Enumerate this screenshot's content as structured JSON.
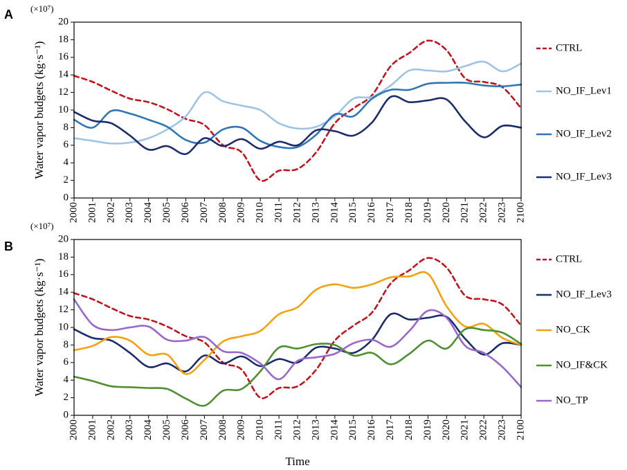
{
  "xlabel": "Time",
  "chart_data": [
    {
      "type": "line",
      "panel": "A",
      "scale_note": "(×10⁷)",
      "ylabel": "Water vapor budgets (kg·s⁻¹)",
      "ylim": [
        0,
        20
      ],
      "yticks": [
        "0",
        "2",
        "4",
        "6",
        "8",
        "10",
        "12",
        "14",
        "16",
        "18",
        "20"
      ],
      "categories": [
        "2000",
        "2001",
        "2002",
        "2003",
        "2004",
        "2005",
        "2006",
        "2007",
        "2008",
        "2009",
        "2010",
        "2011",
        "2012",
        "2013",
        "2014",
        "2015",
        "2016",
        "2017",
        "2018",
        "2019",
        "2020",
        "2021",
        "2022",
        "2023",
        "2100"
      ],
      "series": [
        {
          "name": "CTRL",
          "color": "#c0141c",
          "dash": true,
          "values": [
            13.9,
            13.2,
            12.2,
            11.3,
            10.9,
            10.1,
            9.0,
            8.3,
            6.0,
            5.2,
            2.0,
            3.1,
            3.3,
            5.2,
            8.5,
            10.2,
            11.7,
            15.0,
            16.5,
            17.9,
            16.8,
            13.6,
            13.2,
            12.6,
            10.2
          ]
        },
        {
          "name": "NO_IF_Lev1",
          "color": "#9dc3e6",
          "dash": false,
          "values": [
            6.8,
            6.5,
            6.2,
            6.3,
            6.8,
            7.8,
            9.3,
            12.0,
            11.0,
            10.5,
            10.0,
            8.5,
            7.9,
            8.1,
            9.3,
            11.3,
            11.5,
            12.8,
            14.5,
            14.5,
            14.4,
            15.0,
            15.5,
            14.4,
            15.3
          ]
        },
        {
          "name": "NO_IF_Lev2",
          "color": "#2e75b6",
          "dash": false,
          "values": [
            8.9,
            8.0,
            9.9,
            9.6,
            8.9,
            8.1,
            6.6,
            6.3,
            7.8,
            8.0,
            6.5,
            5.8,
            5.8,
            7.2,
            9.5,
            9.3,
            11.3,
            12.3,
            12.3,
            13.0,
            13.1,
            13.1,
            12.8,
            12.7,
            12.9
          ]
        },
        {
          "name": "NO_IF_Lev3",
          "color": "#1a2c6b",
          "dash": false,
          "values": [
            9.8,
            8.8,
            8.5,
            7.1,
            5.5,
            5.9,
            5.0,
            6.8,
            5.9,
            6.7,
            5.6,
            6.4,
            6.0,
            7.7,
            7.6,
            7.1,
            8.6,
            11.5,
            10.9,
            11.1,
            11.2,
            8.7,
            6.9,
            8.2,
            8.0
          ]
        }
      ]
    },
    {
      "type": "line",
      "panel": "B",
      "scale_note": "(×10⁷)",
      "ylabel": "Water vapor budgets (kg·s⁻¹)",
      "ylim": [
        0,
        20
      ],
      "yticks": [
        "0",
        "2",
        "4",
        "6",
        "8",
        "10",
        "12",
        "14",
        "16",
        "18",
        "20"
      ],
      "categories": [
        "2000",
        "2001",
        "2002",
        "2003",
        "2004",
        "2005",
        "2006",
        "2007",
        "2008",
        "2009",
        "2010",
        "2011",
        "2012",
        "2013",
        "2014",
        "2015",
        "2016",
        "2017",
        "2018",
        "2019",
        "2020",
        "2021",
        "2022",
        "2023",
        "2100"
      ],
      "series": [
        {
          "name": "CTRL",
          "color": "#c0141c",
          "dash": true,
          "values": [
            13.9,
            13.2,
            12.2,
            11.3,
            10.9,
            10.1,
            9.0,
            8.3,
            6.0,
            5.2,
            2.0,
            3.1,
            3.3,
            5.2,
            8.5,
            10.2,
            11.7,
            15.0,
            16.5,
            17.9,
            16.8,
            13.6,
            13.2,
            12.6,
            10.2
          ]
        },
        {
          "name": "NO_IF_Lev3",
          "color": "#1a2c6b",
          "dash": false,
          "values": [
            9.8,
            8.8,
            8.5,
            7.1,
            5.5,
            5.9,
            5.0,
            6.8,
            5.9,
            6.7,
            5.6,
            6.4,
            6.0,
            7.7,
            7.6,
            7.1,
            8.6,
            11.5,
            10.9,
            11.1,
            11.2,
            8.7,
            6.9,
            8.2,
            8.0
          ]
        },
        {
          "name": "NO_CK",
          "color": "#f5a00f",
          "dash": false,
          "values": [
            7.4,
            7.9,
            8.9,
            8.5,
            6.9,
            6.9,
            4.7,
            6.3,
            8.4,
            9.0,
            9.6,
            11.5,
            12.3,
            14.3,
            14.9,
            14.5,
            14.9,
            15.7,
            15.8,
            16.1,
            12.4,
            10.1,
            10.4,
            8.8,
            8.0
          ]
        },
        {
          "name": "NO_IF&CK",
          "color": "#4e8f2f",
          "dash": false,
          "values": [
            4.4,
            3.9,
            3.3,
            3.2,
            3.1,
            3.0,
            1.9,
            1.1,
            2.8,
            3.0,
            5.0,
            7.7,
            7.6,
            8.1,
            8.0,
            6.8,
            7.1,
            5.8,
            7.0,
            8.5,
            7.6,
            9.8,
            9.7,
            9.4,
            8.1
          ]
        },
        {
          "name": "NO_TP",
          "color": "#9966cc",
          "dash": false,
          "values": [
            13.2,
            10.3,
            9.7,
            10.0,
            10.1,
            8.6,
            8.5,
            8.9,
            7.3,
            7.1,
            5.9,
            4.1,
            6.2,
            6.6,
            7.0,
            8.2,
            8.6,
            7.8,
            9.6,
            11.9,
            11.1,
            7.9,
            7.1,
            5.5,
            3.2
          ]
        }
      ]
    }
  ]
}
